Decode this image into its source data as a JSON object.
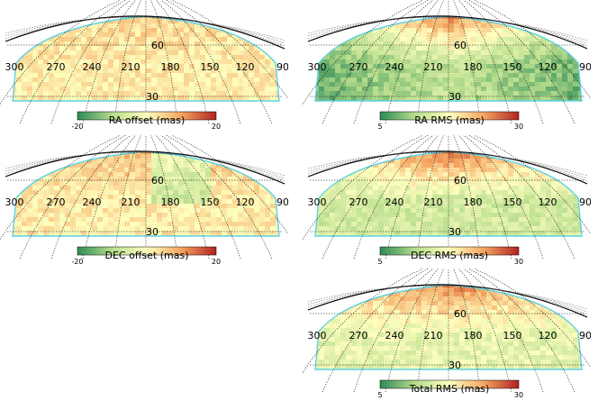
{
  "chart_data": [
    {
      "type": "heatmap",
      "title": "RA offset (mas)",
      "colormap": "diverging-green-yellow-red",
      "colors": [
        "#2e8b57",
        "#b5dc8c",
        "#ffffbf",
        "#f4a460",
        "#b22222"
      ],
      "vmin": -20,
      "vmax": 20,
      "cbar_ticks": [
        "-20",
        "20"
      ],
      "ra_labels": [
        "300",
        "270",
        "240",
        "210",
        "180",
        "150",
        "120",
        "90"
      ],
      "dec_labels": [
        "60",
        "30"
      ],
      "overall_level": 0.55,
      "north_level": 0.62
    },
    {
      "type": "heatmap",
      "title": "RA RMS (mas)",
      "colormap": "diverging-green-yellow-red",
      "colors": [
        "#2e8b57",
        "#b5dc8c",
        "#ffffbf",
        "#f4a460",
        "#b22222"
      ],
      "vmin": 5,
      "vmax": 30,
      "cbar_ticks": [
        "5",
        "30"
      ],
      "ra_labels": [
        "300",
        "270",
        "240",
        "210",
        "180",
        "150",
        "120",
        "90"
      ],
      "dec_labels": [
        "60",
        "30"
      ],
      "overall_level": 0.3,
      "north_level": 0.78
    },
    {
      "type": "heatmap",
      "title": "DEC offset (mas)",
      "colormap": "diverging-green-yellow-red",
      "colors": [
        "#2e8b57",
        "#b5dc8c",
        "#ffffbf",
        "#f4a460",
        "#b22222"
      ],
      "vmin": -20,
      "vmax": 20,
      "cbar_ticks": [
        "-20",
        "20"
      ],
      "ra_labels": [
        "300",
        "270",
        "240",
        "210",
        "180",
        "150",
        "120",
        "90"
      ],
      "dec_labels": [
        "60",
        "30"
      ],
      "overall_level": 0.55,
      "north_level": 0.68
    },
    {
      "type": "heatmap",
      "title": "DEC RMS (mas)",
      "colormap": "diverging-green-yellow-red",
      "colors": [
        "#2e8b57",
        "#b5dc8c",
        "#ffffbf",
        "#f4a460",
        "#b22222"
      ],
      "vmin": 5,
      "vmax": 30,
      "cbar_ticks": [
        "5",
        "30"
      ],
      "ra_labels": [
        "300",
        "270",
        "240",
        "210",
        "180",
        "150",
        "120",
        "90"
      ],
      "dec_labels": [
        "60",
        "30"
      ],
      "overall_level": 0.35,
      "north_level": 0.82
    },
    {
      "type": "heatmap",
      "title": "Total RMS (mas)",
      "colormap": "diverging-green-yellow-red",
      "colors": [
        "#2e8b57",
        "#b5dc8c",
        "#ffffbf",
        "#f4a460",
        "#b22222"
      ],
      "vmin": 5,
      "vmax": 30,
      "cbar_ticks": [
        "5",
        "30"
      ],
      "ra_labels": [
        "300",
        "270",
        "240",
        "210",
        "180",
        "150",
        "120",
        "90"
      ],
      "dec_labels": [
        "60",
        "30"
      ],
      "overall_level": 0.42,
      "north_level": 0.8
    }
  ]
}
